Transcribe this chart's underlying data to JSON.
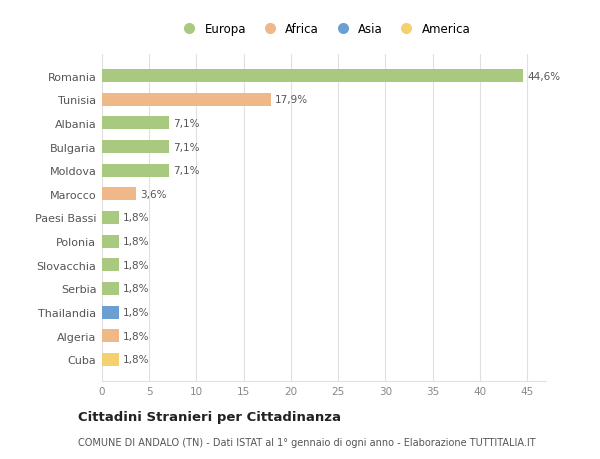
{
  "countries": [
    "Romania",
    "Tunisia",
    "Albania",
    "Bulgaria",
    "Moldova",
    "Marocco",
    "Paesi Bassi",
    "Polonia",
    "Slovacchia",
    "Serbia",
    "Thailandia",
    "Algeria",
    "Cuba"
  ],
  "values": [
    44.6,
    17.9,
    7.1,
    7.1,
    7.1,
    3.6,
    1.8,
    1.8,
    1.8,
    1.8,
    1.8,
    1.8,
    1.8
  ],
  "labels": [
    "44,6%",
    "17,9%",
    "7,1%",
    "7,1%",
    "7,1%",
    "3,6%",
    "1,8%",
    "1,8%",
    "1,8%",
    "1,8%",
    "1,8%",
    "1,8%",
    "1,8%"
  ],
  "colors": [
    "#a8c97f",
    "#f0b888",
    "#a8c97f",
    "#a8c97f",
    "#a8c97f",
    "#f0b888",
    "#a8c97f",
    "#a8c97f",
    "#a8c97f",
    "#a8c97f",
    "#6b9fd4",
    "#f0b888",
    "#f5d06e"
  ],
  "legend_labels": [
    "Europa",
    "Africa",
    "Asia",
    "America"
  ],
  "legend_colors": [
    "#a8c97f",
    "#f0b888",
    "#6b9fd4",
    "#f5d06e"
  ],
  "title": "Cittadini Stranieri per Cittadinanza",
  "subtitle": "COMUNE DI ANDALO (TN) - Dati ISTAT al 1° gennaio di ogni anno - Elaborazione TUTTITALIA.IT",
  "xlim": [
    0,
    47
  ],
  "xticks": [
    0,
    5,
    10,
    15,
    20,
    25,
    30,
    35,
    40,
    45
  ],
  "bg_color": "#ffffff",
  "grid_color": "#e0e0e0"
}
